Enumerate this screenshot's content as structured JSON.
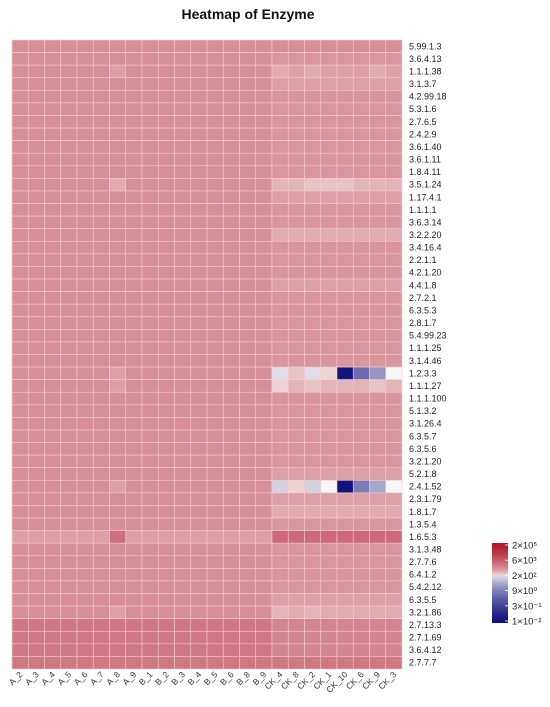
{
  "chart_data": {
    "type": "heatmap",
    "title": "Heatmap of Enzyme",
    "columns": [
      "A_2",
      "A_3",
      "A_4",
      "A_5",
      "A_6",
      "A_7",
      "A_8",
      "A_9",
      "B_1",
      "B_2",
      "B_3",
      "B_4",
      "B_5",
      "B_6",
      "B_8",
      "B_9",
      "CK_4",
      "CK_8",
      "CK_2",
      "CK_1",
      "CK_10",
      "CK_6",
      "CK_9",
      "CK_3"
    ],
    "rows": [
      "5.99.1.3",
      "3.6.4.13",
      "1.1.1.38",
      "3.1.3.7",
      "4.2.99.18",
      "5.3.1.6",
      "2.7.6.5",
      "2.4.2.9",
      "3.6.1.40",
      "3.6.1.11",
      "1.8.4.11",
      "3.5.1.24",
      "1.17.4.1",
      "1.1.1.1",
      "3.6.3.14",
      "3.2.2.20",
      "3.4.16.4",
      "2.2.1.1",
      "4.2.1.20",
      "4.4.1.8",
      "2.7.2.1",
      "6.3.5.3",
      "2.8.1.7",
      "5.4.99.23",
      "1.1.1.25",
      "3.1.4.46",
      "1.2.3.3",
      "1.1.1.27",
      "1.1.1.100",
      "5.1.3.2",
      "3.1.26.4",
      "6.3.5.7",
      "6.3.5.6",
      "3.2.1.20",
      "5.2.1.8",
      "2.4.1.52",
      "2.3.1.79",
      "1.8.1.7",
      "1.3.5.4",
      "1.6.5.3",
      "3.1.3.48",
      "2.7.7.6",
      "6.4.1.2",
      "5.4.2.12",
      "6.3.5.5",
      "3.2.1.86",
      "2.7.13.3",
      "2.7.1.69",
      "3.6.4.12",
      "2.7.7.7"
    ],
    "values": [
      [
        3.0,
        3.0,
        3.0,
        3.0,
        3.0,
        3.0,
        3.0,
        3.0,
        3.0,
        3.0,
        3.0,
        3.0,
        3.0,
        3.0,
        3.0,
        3.0,
        3.0,
        3.0,
        3.0,
        3.0,
        3.0,
        3.0,
        3.0,
        3.0
      ],
      [
        3.0,
        3.0,
        3.0,
        3.0,
        3.0,
        3.0,
        3.0,
        3.0,
        3.0,
        3.0,
        3.0,
        3.0,
        3.0,
        3.0,
        3.0,
        3.0,
        2.9,
        2.9,
        2.9,
        2.9,
        2.9,
        2.9,
        2.9,
        2.9
      ],
      [
        3.0,
        3.0,
        3.0,
        3.0,
        3.0,
        3.0,
        2.8,
        3.0,
        3.0,
        3.0,
        3.0,
        3.0,
        3.0,
        3.0,
        3.0,
        3.0,
        2.7,
        2.8,
        2.7,
        2.8,
        2.8,
        2.8,
        2.7,
        2.8
      ],
      [
        3.0,
        3.0,
        3.0,
        3.0,
        3.0,
        3.0,
        3.0,
        3.0,
        3.0,
        3.0,
        3.0,
        3.0,
        3.0,
        3.0,
        3.0,
        3.0,
        2.8,
        2.8,
        2.8,
        2.8,
        2.8,
        2.8,
        2.8,
        2.8
      ],
      [
        3.0,
        3.0,
        3.0,
        3.0,
        3.0,
        3.0,
        3.0,
        3.0,
        3.0,
        3.0,
        3.0,
        3.0,
        3.0,
        3.0,
        3.0,
        3.0,
        2.9,
        2.9,
        2.9,
        2.9,
        2.9,
        2.9,
        2.9,
        2.9
      ],
      [
        3.0,
        3.0,
        3.0,
        3.0,
        3.0,
        3.0,
        3.0,
        3.0,
        3.0,
        3.0,
        3.0,
        3.0,
        3.0,
        3.0,
        3.0,
        3.0,
        2.9,
        2.9,
        2.9,
        2.9,
        2.9,
        2.9,
        2.9,
        2.9
      ],
      [
        3.0,
        3.0,
        3.0,
        3.0,
        3.0,
        3.0,
        3.0,
        3.0,
        3.0,
        3.0,
        3.0,
        3.0,
        3.0,
        3.0,
        3.0,
        3.0,
        2.9,
        2.9,
        2.9,
        2.9,
        2.9,
        2.9,
        2.9,
        2.9
      ],
      [
        3.0,
        3.0,
        3.0,
        3.0,
        3.0,
        3.0,
        3.0,
        3.0,
        3.0,
        3.0,
        3.0,
        3.0,
        3.0,
        3.0,
        3.0,
        3.0,
        2.9,
        2.9,
        2.9,
        2.9,
        2.9,
        2.9,
        2.9,
        2.9
      ],
      [
        3.0,
        3.0,
        3.0,
        3.0,
        3.0,
        3.0,
        3.0,
        3.0,
        3.0,
        3.0,
        3.0,
        3.0,
        3.0,
        3.0,
        3.0,
        3.0,
        2.9,
        2.9,
        2.9,
        2.9,
        2.9,
        2.9,
        2.9,
        2.9
      ],
      [
        3.0,
        3.0,
        3.0,
        3.0,
        3.0,
        3.0,
        3.0,
        3.0,
        3.0,
        3.0,
        3.0,
        3.0,
        3.0,
        3.0,
        3.0,
        3.0,
        2.9,
        2.9,
        2.9,
        2.9,
        2.9,
        2.9,
        2.9,
        2.9
      ],
      [
        3.0,
        3.0,
        3.0,
        3.0,
        3.0,
        3.0,
        3.0,
        3.0,
        3.0,
        3.0,
        3.0,
        3.0,
        3.0,
        3.0,
        3.0,
        3.0,
        2.9,
        2.9,
        2.9,
        2.9,
        2.9,
        2.9,
        2.9,
        2.9
      ],
      [
        3.0,
        3.0,
        3.0,
        3.0,
        3.0,
        3.0,
        2.7,
        3.0,
        3.0,
        3.0,
        3.0,
        3.0,
        3.0,
        3.0,
        3.0,
        3.0,
        2.6,
        2.6,
        2.5,
        2.5,
        2.5,
        2.6,
        2.6,
        2.6
      ],
      [
        3.0,
        3.0,
        3.0,
        3.0,
        3.0,
        3.0,
        3.0,
        3.0,
        3.0,
        3.0,
        3.0,
        3.0,
        3.0,
        3.0,
        3.0,
        3.0,
        2.8,
        2.8,
        2.8,
        2.8,
        2.8,
        2.8,
        2.8,
        2.8
      ],
      [
        3.0,
        3.0,
        3.0,
        3.0,
        3.0,
        3.0,
        3.0,
        3.0,
        3.0,
        3.0,
        3.0,
        3.0,
        3.0,
        3.0,
        3.0,
        3.0,
        2.9,
        2.9,
        2.9,
        2.9,
        2.9,
        2.9,
        2.9,
        2.9
      ],
      [
        3.0,
        3.0,
        3.0,
        3.0,
        3.0,
        3.0,
        3.0,
        3.0,
        3.0,
        3.0,
        3.0,
        3.0,
        3.0,
        3.0,
        3.0,
        3.0,
        2.9,
        2.9,
        2.9,
        2.9,
        2.9,
        2.9,
        2.9,
        2.9
      ],
      [
        3.0,
        3.0,
        3.0,
        3.0,
        3.0,
        3.0,
        3.0,
        3.0,
        3.0,
        3.0,
        3.0,
        3.0,
        3.0,
        3.0,
        3.0,
        3.0,
        2.7,
        2.7,
        2.7,
        2.7,
        2.7,
        2.7,
        2.7,
        2.7
      ],
      [
        3.0,
        3.0,
        3.0,
        3.0,
        3.0,
        3.0,
        3.0,
        3.0,
        3.0,
        3.0,
        3.0,
        3.0,
        3.0,
        3.0,
        3.0,
        3.0,
        2.9,
        2.9,
        2.9,
        2.9,
        2.9,
        2.9,
        2.9,
        2.9
      ],
      [
        3.0,
        3.0,
        3.0,
        3.0,
        3.0,
        3.0,
        3.0,
        3.0,
        3.0,
        3.0,
        3.0,
        3.0,
        3.0,
        3.0,
        3.0,
        3.0,
        2.9,
        2.9,
        2.9,
        2.9,
        2.9,
        2.9,
        2.9,
        2.9
      ],
      [
        3.0,
        3.0,
        3.0,
        3.0,
        3.0,
        3.0,
        3.0,
        3.0,
        3.0,
        3.0,
        3.0,
        3.0,
        3.0,
        3.0,
        3.0,
        3.0,
        2.9,
        2.9,
        2.9,
        2.9,
        2.9,
        2.9,
        2.9,
        2.9
      ],
      [
        3.0,
        3.0,
        3.0,
        3.0,
        3.0,
        3.0,
        3.0,
        3.0,
        3.0,
        3.0,
        3.0,
        3.0,
        3.0,
        3.0,
        3.0,
        3.0,
        2.8,
        2.8,
        2.8,
        2.8,
        2.8,
        2.8,
        2.8,
        2.8
      ],
      [
        3.0,
        3.0,
        3.0,
        3.0,
        3.0,
        3.0,
        3.0,
        3.0,
        3.0,
        3.0,
        3.0,
        3.0,
        3.0,
        3.0,
        3.0,
        3.0,
        2.9,
        2.9,
        2.9,
        2.9,
        2.9,
        2.9,
        2.9,
        2.9
      ],
      [
        3.0,
        3.0,
        3.0,
        3.0,
        3.0,
        3.0,
        3.0,
        3.0,
        3.0,
        3.0,
        3.0,
        3.0,
        3.0,
        3.0,
        3.0,
        3.0,
        2.9,
        2.9,
        2.9,
        2.9,
        2.9,
        2.9,
        2.9,
        2.9
      ],
      [
        3.0,
        3.0,
        3.0,
        3.0,
        3.0,
        3.0,
        3.0,
        3.0,
        3.0,
        3.0,
        3.0,
        3.0,
        3.0,
        3.0,
        3.0,
        3.0,
        2.9,
        2.9,
        2.9,
        2.9,
        2.9,
        2.9,
        2.9,
        2.9
      ],
      [
        3.0,
        3.0,
        3.0,
        3.0,
        3.0,
        3.0,
        3.0,
        3.0,
        3.0,
        3.0,
        3.0,
        3.0,
        3.0,
        3.0,
        3.0,
        3.0,
        2.9,
        2.9,
        2.9,
        2.9,
        2.9,
        2.9,
        2.9,
        2.9
      ],
      [
        3.0,
        3.0,
        3.0,
        3.0,
        3.0,
        3.0,
        3.0,
        3.0,
        3.0,
        3.0,
        3.0,
        3.0,
        3.0,
        3.0,
        3.0,
        3.0,
        2.9,
        2.9,
        2.9,
        2.9,
        2.9,
        2.9,
        2.9,
        2.9
      ],
      [
        3.0,
        3.0,
        3.0,
        3.0,
        3.0,
        3.0,
        3.0,
        3.0,
        3.0,
        3.0,
        3.0,
        3.0,
        3.0,
        3.0,
        3.0,
        3.0,
        2.9,
        2.9,
        2.9,
        2.9,
        2.9,
        2.9,
        2.9,
        2.9
      ],
      [
        3.0,
        3.0,
        3.0,
        3.0,
        3.0,
        3.0,
        2.8,
        3.0,
        3.0,
        3.0,
        3.0,
        3.0,
        3.0,
        3.0,
        3.0,
        3.0,
        2.2,
        2.5,
        2.2,
        2.4,
        -1.7,
        0.5,
        1.3,
        2.3
      ],
      [
        3.0,
        3.0,
        3.0,
        3.0,
        3.0,
        3.0,
        2.8,
        3.0,
        3.0,
        3.0,
        3.0,
        3.0,
        3.0,
        3.0,
        3.0,
        3.0,
        2.4,
        2.6,
        2.5,
        2.6,
        2.6,
        2.6,
        2.5,
        2.6
      ],
      [
        3.0,
        3.0,
        3.0,
        3.0,
        3.0,
        3.0,
        3.0,
        3.0,
        3.0,
        3.0,
        3.0,
        3.0,
        3.0,
        3.0,
        3.0,
        3.0,
        2.9,
        2.9,
        2.9,
        2.9,
        2.9,
        2.9,
        2.9,
        2.9
      ],
      [
        3.0,
        3.0,
        3.0,
        3.0,
        3.0,
        3.0,
        3.0,
        3.0,
        3.0,
        3.0,
        3.0,
        3.0,
        3.0,
        3.0,
        3.0,
        3.0,
        2.9,
        2.9,
        2.9,
        2.9,
        2.9,
        2.9,
        2.9,
        2.9
      ],
      [
        3.0,
        3.0,
        3.0,
        3.0,
        3.0,
        3.0,
        3.0,
        3.0,
        3.0,
        3.0,
        3.0,
        3.0,
        3.0,
        3.0,
        3.0,
        3.0,
        2.9,
        2.9,
        2.9,
        2.9,
        2.9,
        2.9,
        2.9,
        2.9
      ],
      [
        3.0,
        3.0,
        3.0,
        3.0,
        3.0,
        3.0,
        3.0,
        3.0,
        3.0,
        3.0,
        3.0,
        3.0,
        3.0,
        3.0,
        3.0,
        3.0,
        2.9,
        2.9,
        2.9,
        2.9,
        2.9,
        2.9,
        2.9,
        2.9
      ],
      [
        3.0,
        3.0,
        3.0,
        3.0,
        3.0,
        3.0,
        3.0,
        3.0,
        3.0,
        3.0,
        3.0,
        3.0,
        3.0,
        3.0,
        3.0,
        3.0,
        2.9,
        2.9,
        2.9,
        2.9,
        2.9,
        2.9,
        2.9,
        2.9
      ],
      [
        3.0,
        3.0,
        3.0,
        3.0,
        3.0,
        3.0,
        3.0,
        3.0,
        3.0,
        3.0,
        3.0,
        3.0,
        3.0,
        3.0,
        3.0,
        3.0,
        2.9,
        2.9,
        2.9,
        2.9,
        2.9,
        2.9,
        2.9,
        2.9
      ],
      [
        3.0,
        3.0,
        3.0,
        3.0,
        3.0,
        3.0,
        3.0,
        3.0,
        3.0,
        3.0,
        3.0,
        3.0,
        3.0,
        3.0,
        3.0,
        3.0,
        2.8,
        2.8,
        2.8,
        2.8,
        2.8,
        2.8,
        2.8,
        2.8
      ],
      [
        3.0,
        3.0,
        3.0,
        3.0,
        3.0,
        3.0,
        2.8,
        3.0,
        3.0,
        3.0,
        3.0,
        3.0,
        3.0,
        3.0,
        3.0,
        3.0,
        2.1,
        2.4,
        2.1,
        2.3,
        -1.8,
        0.8,
        1.6,
        2.3
      ],
      [
        3.0,
        3.0,
        3.0,
        3.0,
        3.0,
        3.0,
        3.0,
        3.0,
        3.0,
        3.0,
        3.0,
        3.0,
        3.0,
        3.0,
        3.0,
        3.0,
        2.8,
        2.8,
        2.8,
        2.8,
        2.8,
        2.8,
        2.8,
        2.8
      ],
      [
        3.0,
        3.0,
        3.0,
        3.0,
        3.0,
        3.0,
        3.0,
        3.0,
        3.0,
        3.0,
        3.0,
        3.0,
        3.0,
        3.0,
        3.0,
        3.0,
        2.7,
        2.7,
        2.7,
        2.7,
        2.7,
        2.7,
        2.7,
        2.7
      ],
      [
        3.0,
        3.0,
        3.0,
        3.0,
        3.0,
        3.0,
        3.0,
        3.0,
        3.0,
        3.0,
        3.0,
        3.0,
        3.0,
        3.0,
        3.0,
        3.0,
        2.9,
        2.9,
        2.9,
        2.9,
        2.9,
        2.9,
        2.9,
        2.9
      ],
      [
        2.8,
        2.8,
        2.8,
        2.8,
        2.8,
        2.8,
        3.4,
        2.8,
        2.8,
        2.8,
        2.8,
        2.8,
        2.8,
        2.8,
        2.8,
        2.8,
        3.5,
        3.5,
        3.5,
        3.5,
        3.5,
        3.5,
        3.5,
        3.5
      ],
      [
        3.0,
        3.0,
        3.0,
        3.0,
        3.0,
        3.0,
        3.0,
        3.0,
        3.0,
        3.0,
        3.0,
        3.0,
        3.0,
        3.0,
        3.0,
        3.0,
        2.9,
        2.9,
        2.9,
        2.9,
        2.9,
        2.9,
        2.9,
        2.9
      ],
      [
        3.0,
        3.0,
        3.0,
        3.0,
        3.0,
        3.0,
        3.0,
        3.0,
        3.0,
        3.0,
        3.0,
        3.0,
        3.0,
        3.0,
        3.0,
        3.0,
        2.9,
        2.9,
        2.9,
        2.9,
        2.9,
        2.9,
        2.9,
        2.9
      ],
      [
        3.0,
        3.0,
        3.0,
        3.0,
        3.0,
        3.0,
        3.0,
        3.0,
        3.0,
        3.0,
        3.0,
        3.0,
        3.0,
        3.0,
        3.0,
        3.0,
        2.9,
        2.9,
        2.9,
        2.9,
        2.9,
        2.9,
        2.9,
        2.9
      ],
      [
        3.0,
        3.0,
        3.0,
        3.0,
        3.0,
        3.0,
        3.0,
        3.0,
        3.0,
        3.0,
        3.0,
        3.0,
        3.0,
        3.0,
        3.0,
        3.0,
        2.9,
        2.9,
        2.9,
        2.9,
        2.9,
        2.9,
        2.9,
        2.9
      ],
      [
        3.0,
        3.0,
        3.0,
        3.0,
        3.0,
        3.0,
        3.0,
        3.0,
        3.0,
        3.0,
        3.0,
        3.0,
        3.0,
        3.0,
        3.0,
        3.0,
        2.8,
        2.8,
        2.8,
        2.8,
        2.8,
        2.8,
        2.8,
        2.8
      ],
      [
        3.0,
        3.0,
        3.0,
        3.0,
        3.0,
        3.0,
        2.8,
        3.0,
        3.0,
        3.0,
        3.0,
        3.0,
        3.0,
        3.0,
        3.0,
        3.0,
        2.6,
        2.7,
        2.6,
        2.7,
        2.7,
        2.7,
        2.7,
        2.7
      ],
      [
        3.3,
        3.3,
        3.3,
        3.3,
        3.3,
        3.3,
        3.3,
        3.3,
        3.3,
        3.3,
        3.3,
        3.3,
        3.3,
        3.3,
        3.3,
        3.3,
        3.1,
        3.1,
        3.1,
        3.1,
        3.1,
        3.1,
        3.1,
        3.1
      ],
      [
        3.3,
        3.3,
        3.3,
        3.3,
        3.3,
        3.3,
        3.3,
        3.3,
        3.3,
        3.3,
        3.3,
        3.3,
        3.3,
        3.3,
        3.3,
        3.3,
        3.1,
        3.1,
        3.1,
        3.1,
        3.1,
        3.1,
        3.1,
        3.1
      ],
      [
        3.3,
        3.3,
        3.3,
        3.3,
        3.3,
        3.3,
        3.3,
        3.3,
        3.3,
        3.3,
        3.3,
        3.3,
        3.3,
        3.3,
        3.3,
        3.3,
        3.1,
        3.1,
        3.1,
        3.1,
        3.1,
        3.1,
        3.1,
        3.1
      ],
      [
        3.3,
        3.3,
        3.3,
        3.3,
        3.3,
        3.3,
        3.3,
        3.3,
        3.3,
        3.3,
        3.3,
        3.3,
        3.3,
        3.3,
        3.3,
        3.3,
        3.3,
        3.3,
        3.3,
        3.3,
        3.3,
        3.3,
        3.3,
        3.3
      ]
    ],
    "scale": "log10",
    "legend": {
      "placement": "right",
      "ticks": [
        {
          "label": "2×10⁵",
          "value": 5.3
        },
        {
          "label": "6×10³",
          "value": 3.78
        },
        {
          "label": "2×10²",
          "value": 2.3
        },
        {
          "label": "9×10⁰",
          "value": 0.95
        },
        {
          "label": "3×10⁻¹",
          "value": -0.52
        },
        {
          "label": "1×10⁻²",
          "value": -2.0
        }
      ]
    },
    "colors": {
      "high": "#b2182b",
      "mid": "#f7f7f7",
      "low": "#0b0b7a",
      "cell_border": "#f4cccc"
    }
  }
}
